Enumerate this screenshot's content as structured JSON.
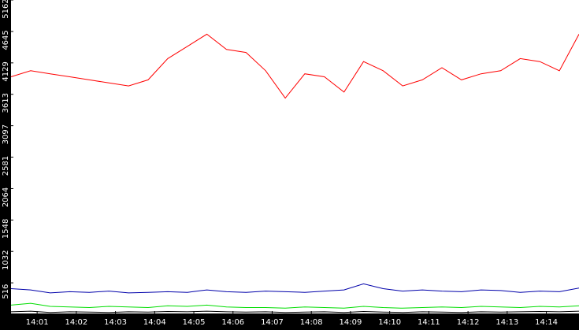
{
  "chart_data": {
    "type": "line",
    "title": "",
    "xlabel": "",
    "ylabel": "",
    "ylim": [
      0,
      5162
    ],
    "xlim": [
      "14:00:20",
      "14:14:50"
    ],
    "y_ticks": [
      516,
      1032,
      1548,
      2064,
      2581,
      3097,
      3613,
      4129,
      4645,
      5162
    ],
    "y_tick_labels": [
      "516",
      "1032",
      "1548",
      "2064",
      "2581",
      "3097",
      "3613",
      "4129",
      "4645",
      "5162"
    ],
    "x_ticks": [
      "14:01",
      "14:02",
      "14:03",
      "14:04",
      "14:05",
      "14:06",
      "14:07",
      "14:08",
      "14:09",
      "14:10",
      "14:11",
      "14:12",
      "14:13",
      "14:14"
    ],
    "grid": false,
    "legend": "none",
    "colors": {
      "background": "#000000",
      "plot_background": "#ffffff",
      "axis_text": "#ffffff",
      "axis_line": "#000000"
    },
    "series": [
      {
        "color": "#ff0000",
        "x": [
          "14:00:20",
          "14:00:50",
          "14:01:20",
          "14:01:50",
          "14:02:20",
          "14:02:50",
          "14:03:20",
          "14:03:50",
          "14:04:20",
          "14:04:50",
          "14:05:20",
          "14:05:50",
          "14:06:20",
          "14:06:50",
          "14:07:20",
          "14:07:50",
          "14:08:20",
          "14:08:50",
          "14:09:20",
          "14:09:50",
          "14:10:20",
          "14:10:50",
          "14:11:20",
          "14:11:50",
          "14:12:20",
          "14:12:50",
          "14:13:20",
          "14:13:50",
          "14:14:20",
          "14:14:50"
        ],
        "values": [
          3900,
          4000,
          3950,
          3900,
          3850,
          3800,
          3750,
          3850,
          4200,
          4400,
          4600,
          4350,
          4300,
          4000,
          3550,
          3950,
          3900,
          3650,
          4150,
          4000,
          3750,
          3850,
          4050,
          3850,
          3950,
          4000,
          4200,
          4150,
          4000,
          4600
        ]
      },
      {
        "color": "#0000aa",
        "x": [
          "14:00:20",
          "14:00:50",
          "14:01:20",
          "14:01:50",
          "14:02:20",
          "14:02:50",
          "14:03:20",
          "14:03:50",
          "14:04:20",
          "14:04:50",
          "14:05:20",
          "14:05:50",
          "14:06:20",
          "14:06:50",
          "14:07:20",
          "14:07:50",
          "14:08:20",
          "14:08:50",
          "14:09:20",
          "14:09:50",
          "14:10:20",
          "14:10:50",
          "14:11:20",
          "14:11:50",
          "14:12:20",
          "14:12:50",
          "14:13:20",
          "14:13:50",
          "14:14:20",
          "14:14:50"
        ],
        "values": [
          420,
          400,
          350,
          370,
          360,
          380,
          350,
          360,
          370,
          360,
          400,
          370,
          360,
          380,
          370,
          360,
          380,
          400,
          500,
          420,
          380,
          400,
          380,
          370,
          400,
          390,
          360,
          380,
          370,
          430
        ]
      },
      {
        "color": "#00dd00",
        "x": [
          "14:00:20",
          "14:00:50",
          "14:01:20",
          "14:01:50",
          "14:02:20",
          "14:02:50",
          "14:03:20",
          "14:03:50",
          "14:04:20",
          "14:04:50",
          "14:05:20",
          "14:05:50",
          "14:06:20",
          "14:06:50",
          "14:07:20",
          "14:07:50",
          "14:08:20",
          "14:08:50",
          "14:09:20",
          "14:09:50",
          "14:10:20",
          "14:10:50",
          "14:11:20",
          "14:11:50",
          "14:12:20",
          "14:12:50",
          "14:13:20",
          "14:13:50",
          "14:14:20",
          "14:14:50"
        ],
        "values": [
          150,
          180,
          130,
          120,
          110,
          130,
          120,
          110,
          140,
          130,
          150,
          120,
          110,
          110,
          100,
          120,
          110,
          100,
          130,
          110,
          100,
          110,
          120,
          110,
          130,
          120,
          110,
          130,
          120,
          140
        ]
      },
      {
        "color": "#000000",
        "x": [
          "14:00:20",
          "14:00:50",
          "14:01:20",
          "14:01:50",
          "14:02:20",
          "14:02:50",
          "14:03:20",
          "14:03:50",
          "14:04:20",
          "14:04:50",
          "14:05:20",
          "14:05:50",
          "14:06:20",
          "14:06:50",
          "14:07:20",
          "14:07:50",
          "14:08:20",
          "14:08:50",
          "14:09:20",
          "14:09:50",
          "14:10:20",
          "14:10:50",
          "14:11:20",
          "14:11:50",
          "14:12:20",
          "14:12:50",
          "14:13:20",
          "14:13:50",
          "14:14:20",
          "14:14:50"
        ],
        "values": [
          40,
          50,
          30,
          40,
          35,
          30,
          40,
          35,
          45,
          40,
          50,
          40,
          35,
          40,
          30,
          35,
          40,
          30,
          45,
          35,
          30,
          40,
          35,
          30,
          40,
          35,
          40,
          45,
          40,
          50
        ]
      }
    ]
  }
}
